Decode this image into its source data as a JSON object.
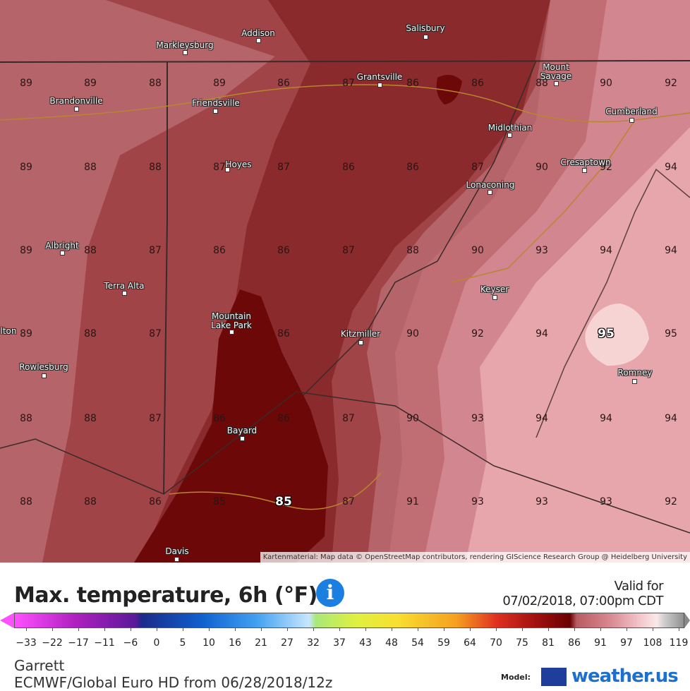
{
  "map": {
    "grid_rows": [
      [
        89,
        89,
        88,
        89,
        86,
        87,
        86,
        86,
        88,
        90,
        92
      ],
      [
        89,
        88,
        88,
        87,
        87,
        86,
        86,
        87,
        90,
        92,
        94
      ],
      [
        89,
        88,
        87,
        86,
        86,
        87,
        88,
        90,
        93,
        94,
        94
      ],
      [
        89,
        88,
        87,
        null,
        86,
        null,
        90,
        92,
        94,
        95,
        95
      ],
      [
        88,
        88,
        87,
        86,
        86,
        87,
        90,
        93,
        94,
        94,
        94
      ],
      [
        88,
        88,
        86,
        85,
        85,
        87,
        91,
        93,
        93,
        93,
        92
      ]
    ],
    "towns": [
      "Markleysburg",
      "Addison",
      "Salisbury",
      "Grantsville",
      "Mount Savage",
      "Brandonville",
      "Friendsville",
      "Cumberland",
      "Midlothian",
      "Hoyes",
      "Cresaptown",
      "Lonaconing",
      "Albright",
      "Terra Alta",
      "Keyser",
      "Mountain Lake Park",
      "Kitzmiller",
      "Rowlesburg",
      "Romney",
      "Bayard",
      "Davis",
      "lton"
    ],
    "attribution": "Kartenmaterial: Map data © OpenStreetMap contributors, rendering GIScience Research Group @ Heidelberg University"
  },
  "legend": {
    "title": "Max. temperature, 6h (°F)",
    "valid_label": "Valid for",
    "valid_time": "07/02/2018, 07:00pm CDT",
    "ticks": [
      {
        "value": -33,
        "label": "−33"
      },
      {
        "value": -22,
        "label": "−22"
      },
      {
        "value": -17,
        "label": "−17"
      },
      {
        "value": -11,
        "label": "−11"
      },
      {
        "value": -6,
        "label": "−6"
      },
      0,
      5,
      10,
      16,
      21,
      27,
      32,
      37,
      43,
      48,
      54,
      59,
      64,
      70,
      75,
      81,
      86,
      91,
      97,
      108,
      119
    ]
  },
  "footer": {
    "location": "Garrett",
    "model_run": "ECMWF/Global Euro HD from 06/28/2018/12z",
    "model_label": "Model:",
    "brand": "weather.us"
  }
}
